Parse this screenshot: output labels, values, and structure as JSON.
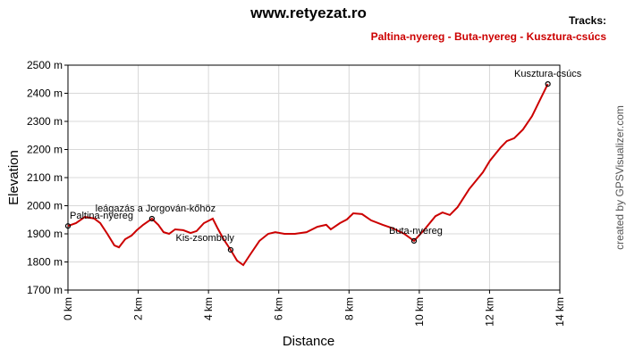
{
  "chart_data": {
    "type": "line",
    "title": "www.retyezat.ro",
    "legend_title": "Tracks:",
    "x_label": "Distance",
    "y_label": "Elevation",
    "credit": "created by GPSVisualizer.com",
    "grid": true,
    "xlim": [
      0,
      14
    ],
    "xticks": [
      {
        "value": 0,
        "label": "0 km"
      },
      {
        "value": 2,
        "label": "2 km"
      },
      {
        "value": 4,
        "label": "4 km"
      },
      {
        "value": 6,
        "label": "6 km"
      },
      {
        "value": 8,
        "label": "8 km"
      },
      {
        "value": 10,
        "label": "10 km"
      },
      {
        "value": 12,
        "label": "12 km"
      },
      {
        "value": 14,
        "label": "14 km"
      }
    ],
    "ylim": [
      1700,
      2500
    ],
    "yticks": [
      {
        "value": 1700,
        "label": "1700 m"
      },
      {
        "value": 1800,
        "label": "1800 m"
      },
      {
        "value": 1900,
        "label": "1900 m"
      },
      {
        "value": 2000,
        "label": "2000 m"
      },
      {
        "value": 2100,
        "label": "2100 m"
      },
      {
        "value": 2200,
        "label": "2200 m"
      },
      {
        "value": 2300,
        "label": "2300 m"
      },
      {
        "value": 2400,
        "label": "2400 m"
      },
      {
        "value": 2500,
        "label": "2500 m"
      }
    ],
    "series": [
      {
        "name": "Paltina-nyereg - Buta-nyereg - Kusztura-csúcs",
        "color": "#cc0000",
        "x": [
          0,
          0.23,
          0.48,
          0.74,
          0.92,
          1.12,
          1.32,
          1.45,
          1.63,
          1.81,
          1.96,
          2.14,
          2.39,
          2.57,
          2.72,
          2.88,
          3.05,
          3.28,
          3.49,
          3.66,
          3.87,
          4.12,
          4.25,
          4.43,
          4.63,
          4.81,
          4.99,
          5.19,
          5.45,
          5.7,
          5.9,
          6.16,
          6.46,
          6.79,
          7.1,
          7.35,
          7.48,
          7.74,
          7.94,
          8.12,
          8.37,
          8.63,
          8.96,
          9.26,
          9.57,
          9.85,
          10.15,
          10.46,
          10.66,
          10.87,
          11.09,
          11.42,
          11.81,
          12.01,
          12.32,
          12.49,
          12.7,
          12.95,
          13.21,
          13.46,
          13.66
        ],
        "values": [
          1928,
          1938,
          1960,
          1955,
          1938,
          1900,
          1859,
          1852,
          1881,
          1894,
          1913,
          1932,
          1954,
          1932,
          1906,
          1900,
          1916,
          1913,
          1903,
          1910,
          1938,
          1954,
          1922,
          1881,
          1843,
          1805,
          1789,
          1827,
          1875,
          1900,
          1906,
          1900,
          1900,
          1906,
          1925,
          1932,
          1916,
          1938,
          1951,
          1973,
          1970,
          1948,
          1932,
          1919,
          1900,
          1875,
          1916,
          1963,
          1976,
          1967,
          1995,
          2059,
          2119,
          2160,
          2208,
          2230,
          2240,
          2271,
          2319,
          2383,
          2433
        ]
      }
    ],
    "waypoints": {
      "labels": [
        "Paltina-nyereg",
        "leágazás a Jorgován-kőhöz",
        "Kis-zsomboly",
        "Buta-nyereg",
        "Kusztura-csúcs"
      ],
      "x": [
        0,
        2.39,
        4.63,
        9.85,
        13.66
      ],
      "values": [
        1928,
        1954,
        1843,
        1875,
        2433
      ]
    }
  }
}
